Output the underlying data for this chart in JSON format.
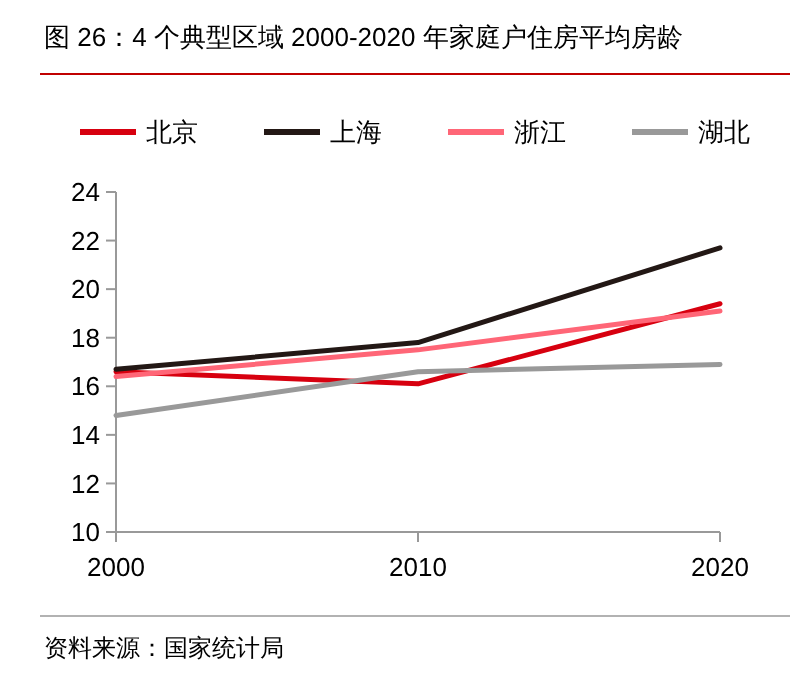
{
  "chart_data": {
    "type": "line",
    "title": "图 26：4 个典型区域 2000-2020 年家庭户住房平均房龄",
    "x": [
      2000,
      2010,
      2020
    ],
    "xlim": [
      2000,
      2020
    ],
    "xticks": [
      2000,
      2010,
      2020
    ],
    "ylim": [
      10,
      24
    ],
    "yticks": [
      10,
      12,
      14,
      16,
      18,
      20,
      22,
      24
    ],
    "series": [
      {
        "name": "北京",
        "color": "#d7000f",
        "values": [
          16.6,
          16.1,
          19.4
        ]
      },
      {
        "name": "上海",
        "color": "#231815",
        "values": [
          16.7,
          17.8,
          21.7
        ]
      },
      {
        "name": "浙江",
        "color": "#ff6677",
        "values": [
          16.4,
          17.5,
          19.1
        ]
      },
      {
        "name": "湖北",
        "color": "#999999",
        "values": [
          14.8,
          16.6,
          16.9
        ]
      }
    ],
    "legend": "top",
    "grid": false,
    "marker": "none",
    "line_style": "solid",
    "annotations": [
      "资料来源：国家统计局"
    ]
  }
}
